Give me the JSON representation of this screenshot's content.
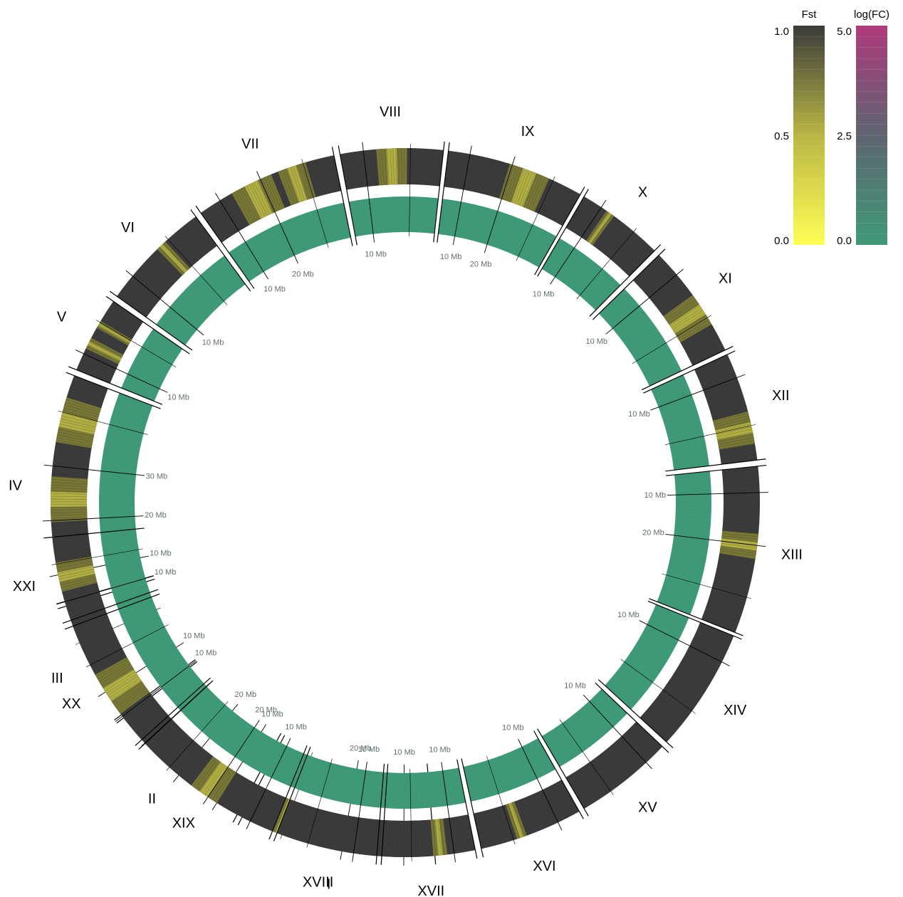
{
  "chart_data": {
    "type": "circos",
    "tracks": [
      {
        "name": "Fst",
        "colormap": [
          "#ffff55",
          "#b9b644",
          "#3a3a3a"
        ],
        "range": [
          0.0,
          1.0
        ],
        "ticks": [
          "1.0",
          "0.5",
          "0.0"
        ]
      },
      {
        "name": "log(FC)",
        "colormap": [
          "#3f9a78",
          "#5d6470",
          "#b03a7c"
        ],
        "range": [
          0.0,
          5.0
        ],
        "ticks": [
          "5.0",
          "2.5",
          "0.0"
        ]
      }
    ],
    "chromosomes": [
      {
        "name": "I",
        "ticks": [
          "10 Mb",
          "20 Mb"
        ],
        "fst_highlights": [
          [
            0.45,
            0.6
          ],
          [
            0.75,
            0.85
          ]
        ]
      },
      {
        "name": "II",
        "ticks": [
          "10 Mb",
          "20 Mb"
        ],
        "fst_highlights": [
          [
            0.3,
            0.4
          ]
        ]
      },
      {
        "name": "III",
        "ticks": [
          "10 Mb"
        ],
        "fst_highlights": [
          [
            0.5,
            0.6
          ]
        ]
      },
      {
        "name": "IV",
        "ticks": [
          "10 Mb",
          "20 Mb",
          "30 Mb"
        ],
        "fst_highlights": [
          [
            0.35,
            0.55
          ],
          [
            0.7,
            0.9
          ]
        ]
      },
      {
        "name": "V",
        "ticks": [
          "10 Mb"
        ],
        "fst_highlights": [
          [
            0.3,
            0.45
          ],
          [
            0.6,
            0.7
          ]
        ]
      },
      {
        "name": "VI",
        "ticks": [
          "10 Mb"
        ],
        "fst_highlights": [
          [
            0.55,
            0.65
          ]
        ]
      },
      {
        "name": "VII",
        "ticks": [
          "10 Mb",
          "20 Mb"
        ],
        "fst_highlights": [
          [
            0.25,
            0.55
          ],
          [
            0.6,
            0.8
          ]
        ]
      },
      {
        "name": "VIII",
        "ticks": [
          "10 Mb"
        ],
        "fst_highlights": [
          [
            0.35,
            0.65
          ]
        ]
      },
      {
        "name": "IX",
        "ticks": [
          "10 Mb",
          "20 Mb"
        ],
        "fst_highlights": [
          [
            0.45,
            0.75
          ]
        ]
      },
      {
        "name": "X",
        "ticks": [
          "10 Mb"
        ],
        "fst_highlights": [
          [
            0.3,
            0.4
          ]
        ]
      },
      {
        "name": "XI",
        "ticks": [
          "10 Mb"
        ],
        "fst_highlights": [
          [
            0.45,
            0.75
          ]
        ]
      },
      {
        "name": "XII",
        "ticks": [
          "10 Mb"
        ],
        "fst_highlights": [
          [
            0.55,
            0.85
          ]
        ]
      },
      {
        "name": "XIII",
        "ticks": [
          "10 Mb",
          "20 Mb"
        ],
        "fst_highlights": [
          [
            0.4,
            0.55
          ]
        ]
      },
      {
        "name": "XIV",
        "ticks": [
          "10 Mb"
        ],
        "fst_highlights": []
      },
      {
        "name": "XV",
        "ticks": [
          "10 Mb"
        ],
        "fst_highlights": []
      },
      {
        "name": "XVI",
        "ticks": [
          "10 Mb"
        ],
        "fst_highlights": [
          [
            0.55,
            0.65
          ]
        ]
      },
      {
        "name": "XVII",
        "ticks": [
          "10 Mb"
        ],
        "fst_highlights": [
          [
            0.3,
            0.45
          ]
        ]
      },
      {
        "name": "XVIII",
        "ticks": [
          "10 Mb"
        ],
        "fst_highlights": []
      },
      {
        "name": "XIX",
        "ticks": [
          "10 Mb",
          "20 Mb"
        ],
        "fst_highlights": [
          [
            0.4,
            0.6
          ]
        ]
      },
      {
        "name": "XX",
        "ticks": [
          "10 Mb"
        ],
        "fst_highlights": [
          [
            0.25,
            0.6
          ]
        ]
      },
      {
        "name": "XXI",
        "ticks": [
          "10 Mb"
        ],
        "fst_highlights": [
          [
            0.35,
            0.7
          ]
        ]
      }
    ]
  }
}
